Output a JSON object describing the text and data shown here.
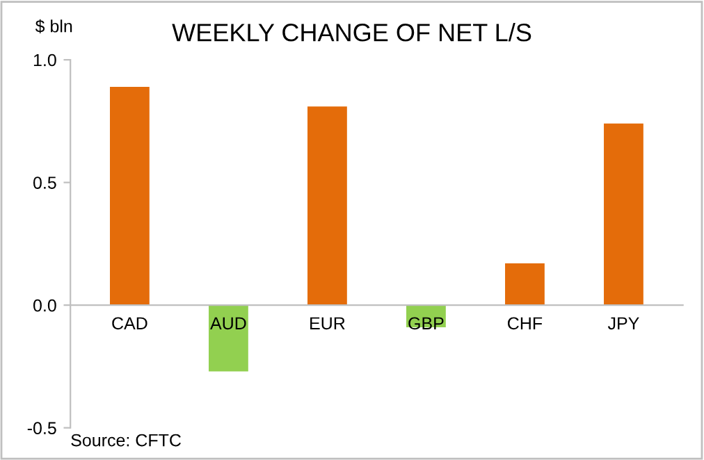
{
  "chart_data": {
    "type": "bar",
    "title": "WEEKLY CHANGE OF NET L/S",
    "ylabel": "$ bln",
    "categories": [
      "CAD",
      "AUD",
      "EUR",
      "GBP",
      "CHF",
      "JPY"
    ],
    "values": [
      0.89,
      -0.27,
      0.81,
      -0.09,
      0.17,
      0.74
    ],
    "colors": [
      "#e46c0a",
      "#92d050",
      "#e46c0a",
      "#92d050",
      "#e46c0a",
      "#e46c0a"
    ],
    "ylim": [
      -0.5,
      1.0
    ],
    "yticks": [
      {
        "value": -0.5,
        "label": "-0.5"
      },
      {
        "value": 0.0,
        "label": "0.0"
      },
      {
        "value": 0.5,
        "label": "0.5"
      },
      {
        "value": 1.0,
        "label": "1.0"
      }
    ],
    "grid": false,
    "annotations": [
      "Source: CFTC"
    ]
  }
}
